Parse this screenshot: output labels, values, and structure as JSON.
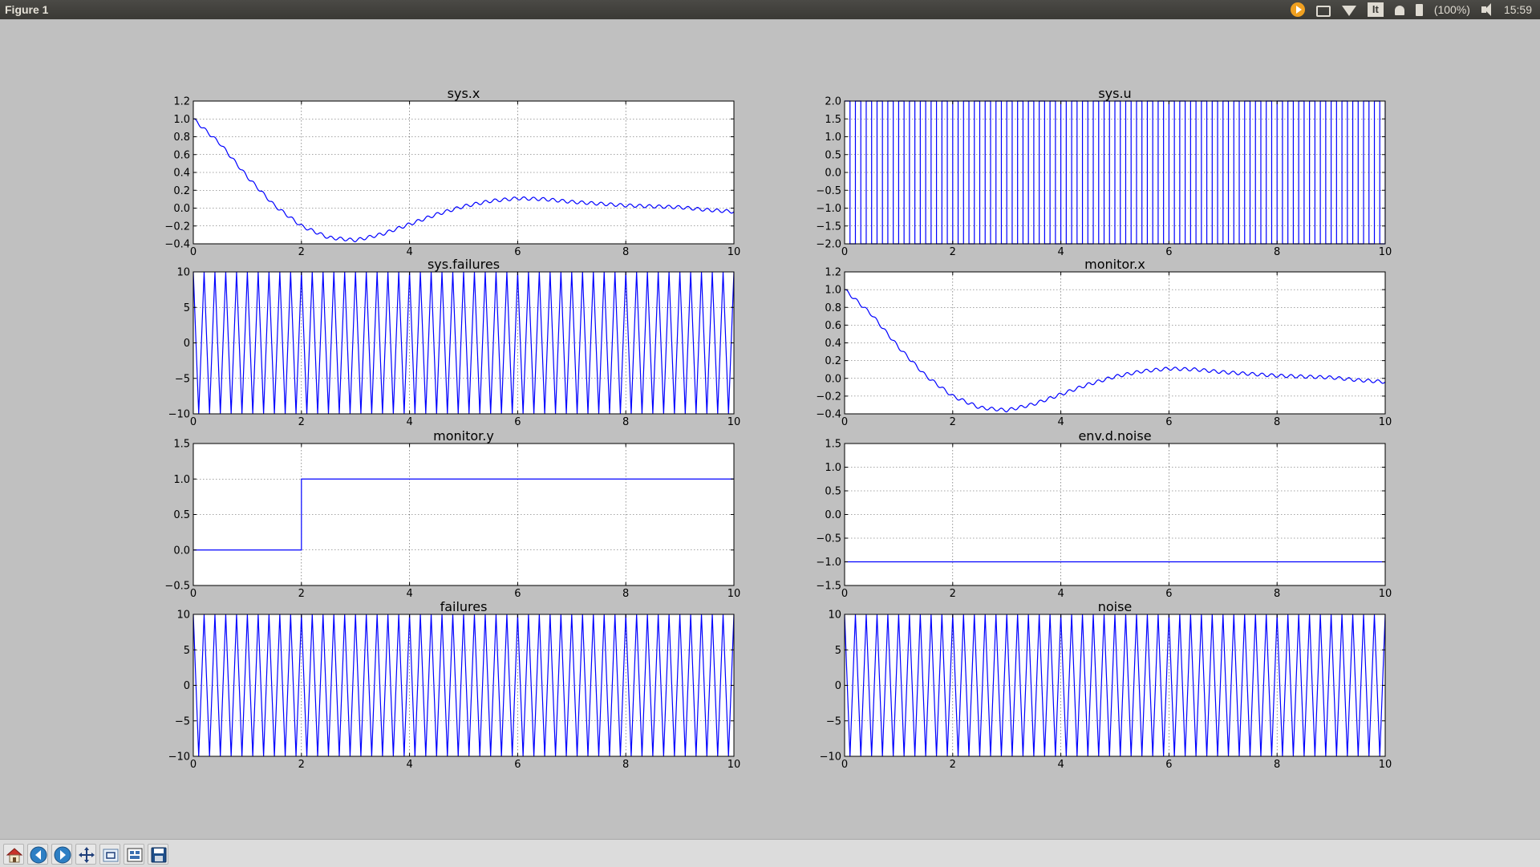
{
  "window": {
    "title": "Figure 1"
  },
  "tray": {
    "keyboard_label": "It",
    "battery_text": "(100%)",
    "clock": "15:59"
  },
  "toolbar": {
    "buttons": [
      "home-icon",
      "back-arrow-icon",
      "forward-arrow-icon",
      "pan-icon",
      "zoom-icon",
      "subplots-icon",
      "save-icon"
    ]
  },
  "colors": {
    "line": "#0000ff",
    "figure_bg": "#c0c0c0",
    "axes_bg": "#ffffff"
  },
  "chart_data": [
    {
      "type": "line",
      "title": "sys.x",
      "xlim": [
        0,
        10
      ],
      "ylim": [
        -0.4,
        1.2
      ],
      "grid": true,
      "xticks": [
        0,
        2,
        4,
        6,
        8,
        10
      ],
      "yticks": [
        -0.4,
        -0.2,
        0.0,
        0.2,
        0.4,
        0.6,
        0.8,
        1.0,
        1.2
      ],
      "ytick_labels": [
        "−0.4",
        "−0.2",
        "0.0",
        "0.2",
        "0.4",
        "0.6",
        "0.8",
        "1.0",
        "1.2"
      ],
      "series": [
        {
          "x": [
            0,
            0.5,
            1,
            1.5,
            2,
            2.5,
            3,
            3.5,
            4,
            4.5,
            5,
            5.5,
            6,
            6.5,
            7,
            7.5,
            8,
            8.5,
            9,
            9.5,
            10
          ],
          "y": [
            1.0,
            0.72,
            0.35,
            0.03,
            -0.2,
            -0.33,
            -0.36,
            -0.29,
            -0.18,
            -0.07,
            0.02,
            0.08,
            0.11,
            0.1,
            0.07,
            0.05,
            0.03,
            0.02,
            0.01,
            -0.02,
            -0.04
          ]
        }
      ]
    },
    {
      "type": "line",
      "title": "sys.u",
      "xlim": [
        0,
        10
      ],
      "ylim": [
        -2.0,
        2.0
      ],
      "grid": true,
      "xticks": [
        0,
        2,
        4,
        6,
        8,
        10
      ],
      "yticks": [
        -2.0,
        -1.5,
        -1.0,
        -0.5,
        0.0,
        0.5,
        1.0,
        1.5,
        2.0
      ],
      "ytick_labels": [
        "−2.0",
        "−1.5",
        "−1.0",
        "−0.5",
        "0.0",
        "0.5",
        "1.0",
        "1.5",
        "2.0"
      ],
      "series": [
        {
          "pattern": "square wave",
          "amplitude": 2.0,
          "cycles_visible": 50
        }
      ]
    },
    {
      "type": "line",
      "title": "sys.failures",
      "xlim": [
        0,
        10
      ],
      "ylim": [
        -10,
        10
      ],
      "grid": true,
      "xticks": [
        0,
        2,
        4,
        6,
        8,
        10
      ],
      "yticks": [
        -10,
        -5,
        0,
        5,
        10
      ],
      "ytick_labels": [
        "−10",
        "−5",
        "0",
        "5",
        "10"
      ],
      "series": [
        {
          "pattern": "triangle wave",
          "amplitude": 10,
          "cycles_visible": 50
        }
      ]
    },
    {
      "type": "line",
      "title": "monitor.x",
      "xlim": [
        0,
        10
      ],
      "ylim": [
        -0.4,
        1.2
      ],
      "grid": true,
      "xticks": [
        0,
        2,
        4,
        6,
        8,
        10
      ],
      "yticks": [
        -0.4,
        -0.2,
        0.0,
        0.2,
        0.4,
        0.6,
        0.8,
        1.0,
        1.2
      ],
      "ytick_labels": [
        "−0.4",
        "−0.2",
        "0.0",
        "0.2",
        "0.4",
        "0.6",
        "0.8",
        "1.0",
        "1.2"
      ],
      "series": [
        {
          "x": [
            0,
            0.5,
            1,
            1.5,
            2,
            2.5,
            3,
            3.5,
            4,
            4.5,
            5,
            5.5,
            6,
            6.5,
            7,
            7.5,
            8,
            8.5,
            9,
            9.5,
            10
          ],
          "y": [
            1.0,
            0.72,
            0.35,
            0.03,
            -0.2,
            -0.33,
            -0.36,
            -0.29,
            -0.18,
            -0.07,
            0.02,
            0.08,
            0.11,
            0.1,
            0.07,
            0.05,
            0.03,
            0.02,
            0.01,
            -0.02,
            -0.04
          ]
        }
      ]
    },
    {
      "type": "line",
      "title": "monitor.y",
      "xlim": [
        0,
        10
      ],
      "ylim": [
        -0.5,
        1.5
      ],
      "grid": true,
      "xticks": [
        0,
        2,
        4,
        6,
        8,
        10
      ],
      "yticks": [
        -0.5,
        0.0,
        0.5,
        1.0,
        1.5
      ],
      "ytick_labels": [
        "−0.5",
        "0.0",
        "0.5",
        "1.0",
        "1.5"
      ],
      "series": [
        {
          "x": [
            0,
            2,
            2,
            10
          ],
          "y": [
            0.0,
            0.0,
            1.0,
            1.0
          ]
        }
      ]
    },
    {
      "type": "line",
      "title": "env.d.noise",
      "xlim": [
        0,
        10
      ],
      "ylim": [
        -1.5,
        1.5
      ],
      "grid": true,
      "xticks": [
        0,
        2,
        4,
        6,
        8,
        10
      ],
      "yticks": [
        -1.5,
        -1.0,
        -0.5,
        0.0,
        0.5,
        1.0,
        1.5
      ],
      "ytick_labels": [
        "−1.5",
        "−1.0",
        "−0.5",
        "0.0",
        "0.5",
        "1.0",
        "1.5"
      ],
      "series": [
        {
          "x": [
            0,
            10
          ],
          "y": [
            -1.0,
            -1.0
          ]
        }
      ]
    },
    {
      "type": "line",
      "title": "failures",
      "xlim": [
        0,
        10
      ],
      "ylim": [
        -10,
        10
      ],
      "grid": true,
      "xticks": [
        0,
        2,
        4,
        6,
        8,
        10
      ],
      "yticks": [
        -10,
        -5,
        0,
        5,
        10
      ],
      "ytick_labels": [
        "−10",
        "−5",
        "0",
        "5",
        "10"
      ],
      "series": [
        {
          "pattern": "triangle wave",
          "amplitude": 10,
          "cycles_visible": 50
        }
      ]
    },
    {
      "type": "line",
      "title": "noise",
      "xlim": [
        0,
        10
      ],
      "ylim": [
        -10,
        10
      ],
      "grid": true,
      "xticks": [
        0,
        2,
        4,
        6,
        8,
        10
      ],
      "yticks": [
        -10,
        -5,
        0,
        5,
        10
      ],
      "ytick_labels": [
        "−10",
        "−5",
        "0",
        "5",
        "10"
      ],
      "series": [
        {
          "pattern": "triangle wave",
          "amplitude": 10,
          "cycles_visible": 50
        }
      ]
    }
  ]
}
